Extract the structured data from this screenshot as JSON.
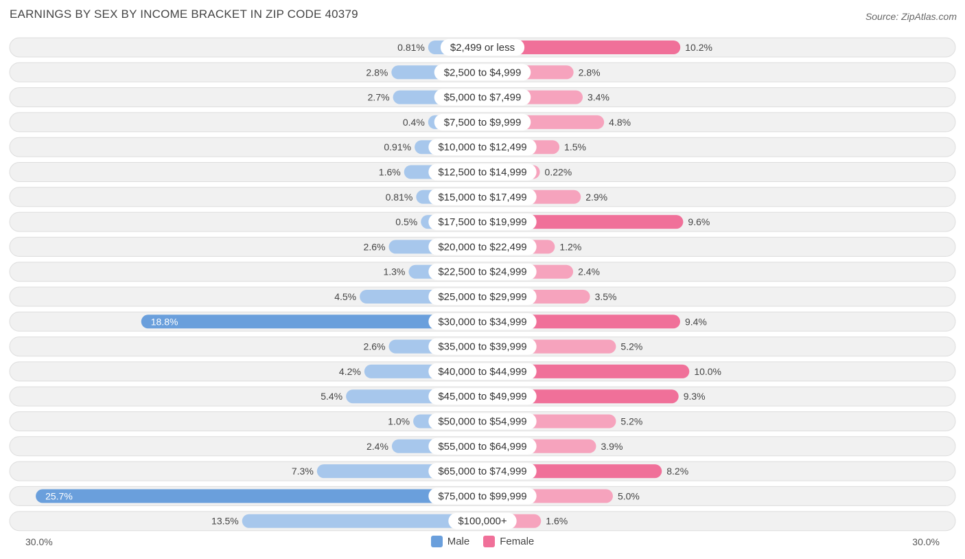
{
  "header": {
    "title": "EARNINGS BY SEX BY INCOME BRACKET IN ZIP CODE 40379",
    "source": "Source: ZipAtlas.com"
  },
  "axis": {
    "left_label": "30.0%",
    "right_label": "30.0%"
  },
  "legend": {
    "male": "Male",
    "female": "Female"
  },
  "colors": {
    "male_light": "#a7c7ec",
    "male_dark": "#6a9fdc",
    "female_light": "#f6a3bd",
    "female_dark": "#f07099",
    "row_bg": "#f1f1f1",
    "row_border": "#dddddd"
  },
  "chart_data": {
    "type": "bar",
    "orientation": "horizontal-diverging",
    "title": "EARNINGS BY SEX BY INCOME BRACKET IN ZIP CODE 40379",
    "xlim": [
      -30,
      30
    ],
    "categories": [
      "$2,499 or less",
      "$2,500 to $4,999",
      "$5,000 to $7,499",
      "$7,500 to $9,999",
      "$10,000 to $12,499",
      "$12,500 to $14,999",
      "$15,000 to $17,499",
      "$17,500 to $19,999",
      "$20,000 to $22,499",
      "$22,500 to $24,999",
      "$25,000 to $29,999",
      "$30,000 to $34,999",
      "$35,000 to $39,999",
      "$40,000 to $44,999",
      "$45,000 to $49,999",
      "$50,000 to $54,999",
      "$55,000 to $64,999",
      "$65,000 to $74,999",
      "$75,000 to $99,999",
      "$100,000+"
    ],
    "series": [
      {
        "name": "Male",
        "values": [
          0.81,
          2.8,
          2.7,
          0.4,
          0.91,
          1.6,
          0.81,
          0.5,
          2.6,
          1.3,
          4.5,
          18.8,
          2.6,
          4.2,
          5.4,
          1.0,
          2.4,
          7.3,
          25.7,
          13.5
        ],
        "labels": [
          "0.81%",
          "2.8%",
          "2.7%",
          "0.4%",
          "0.91%",
          "1.6%",
          "0.81%",
          "0.5%",
          "2.6%",
          "1.3%",
          "4.5%",
          "18.8%",
          "2.6%",
          "4.2%",
          "5.4%",
          "1.0%",
          "2.4%",
          "7.3%",
          "25.7%",
          "13.5%"
        ]
      },
      {
        "name": "Female",
        "values": [
          10.2,
          2.8,
          3.4,
          4.8,
          1.5,
          0.22,
          2.9,
          9.6,
          1.2,
          2.4,
          3.5,
          9.4,
          5.2,
          10.0,
          9.3,
          5.2,
          3.9,
          8.2,
          5.0,
          1.6
        ],
        "labels": [
          "10.2%",
          "2.8%",
          "3.4%",
          "4.8%",
          "1.5%",
          "0.22%",
          "2.9%",
          "9.6%",
          "1.2%",
          "2.4%",
          "3.5%",
          "9.4%",
          "5.2%",
          "10.0%",
          "9.3%",
          "5.2%",
          "3.9%",
          "8.2%",
          "5.0%",
          "1.6%"
        ]
      }
    ]
  }
}
